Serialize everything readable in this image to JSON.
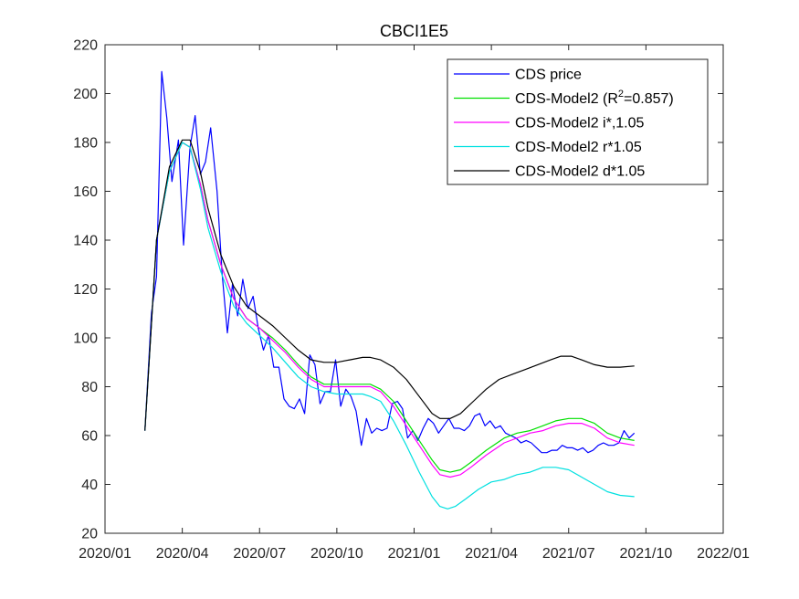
{
  "chart_data": {
    "type": "line",
    "title": "CBCI1E5",
    "xlabel": "",
    "ylabel": "",
    "ylim": [
      20,
      220
    ],
    "yticks": [
      20,
      40,
      60,
      80,
      100,
      120,
      140,
      160,
      180,
      200,
      220
    ],
    "xlim_months": [
      0,
      24
    ],
    "xticks": [
      {
        "label": "2020/01",
        "m": 0
      },
      {
        "label": "2020/04",
        "m": 3
      },
      {
        "label": "2020/07",
        "m": 6
      },
      {
        "label": "2020/10",
        "m": 9
      },
      {
        "label": "2021/01",
        "m": 12
      },
      {
        "label": "2021/04",
        "m": 15
      },
      {
        "label": "2021/07",
        "m": 18
      },
      {
        "label": "2021/10",
        "m": 21
      },
      {
        "label": "2022/01",
        "m": 24
      }
    ],
    "legend_location": "top-right",
    "grid": false,
    "series": [
      {
        "name": "CDS price",
        "color": "#0000ff",
        "points": [
          [
            1.55,
            62
          ],
          [
            1.8,
            110
          ],
          [
            2.0,
            125
          ],
          [
            2.2,
            209
          ],
          [
            2.4,
            190
          ],
          [
            2.6,
            164
          ],
          [
            2.85,
            181
          ],
          [
            3.05,
            138
          ],
          [
            3.3,
            178
          ],
          [
            3.5,
            191
          ],
          [
            3.7,
            167
          ],
          [
            3.9,
            172
          ],
          [
            4.1,
            186
          ],
          [
            4.35,
            160
          ],
          [
            4.55,
            126
          ],
          [
            4.75,
            102
          ],
          [
            4.95,
            122
          ],
          [
            5.15,
            109
          ],
          [
            5.35,
            124
          ],
          [
            5.55,
            112
          ],
          [
            5.75,
            117
          ],
          [
            5.95,
            104
          ],
          [
            6.15,
            95
          ],
          [
            6.35,
            101
          ],
          [
            6.55,
            88
          ],
          [
            6.75,
            88
          ],
          [
            6.95,
            75
          ],
          [
            7.15,
            72
          ],
          [
            7.35,
            71
          ],
          [
            7.55,
            75
          ],
          [
            7.75,
            69
          ],
          [
            7.95,
            93
          ],
          [
            8.15,
            89
          ],
          [
            8.35,
            73
          ],
          [
            8.55,
            78
          ],
          [
            8.75,
            78
          ],
          [
            8.95,
            91
          ],
          [
            9.15,
            72
          ],
          [
            9.35,
            79
          ],
          [
            9.55,
            76
          ],
          [
            9.75,
            70
          ],
          [
            9.95,
            56
          ],
          [
            10.15,
            67
          ],
          [
            10.35,
            61
          ],
          [
            10.55,
            63
          ],
          [
            10.75,
            62
          ],
          [
            10.95,
            63
          ],
          [
            11.15,
            73
          ],
          [
            11.35,
            74
          ],
          [
            11.55,
            71
          ],
          [
            11.75,
            59
          ],
          [
            11.95,
            62
          ],
          [
            12.15,
            58
          ],
          [
            12.35,
            63
          ],
          [
            12.55,
            67
          ],
          [
            12.75,
            65
          ],
          [
            12.95,
            61
          ],
          [
            13.15,
            64
          ],
          [
            13.35,
            67
          ],
          [
            13.55,
            63
          ],
          [
            13.75,
            63
          ],
          [
            13.95,
            62
          ],
          [
            14.15,
            64
          ],
          [
            14.35,
            68
          ],
          [
            14.55,
            69
          ],
          [
            14.75,
            64
          ],
          [
            14.95,
            66
          ],
          [
            15.15,
            63
          ],
          [
            15.35,
            64
          ],
          [
            15.55,
            61
          ],
          [
            15.75,
            60
          ],
          [
            15.95,
            59
          ],
          [
            16.15,
            57
          ],
          [
            16.35,
            58
          ],
          [
            16.55,
            57
          ],
          [
            16.75,
            55
          ],
          [
            16.95,
            53
          ],
          [
            17.15,
            53
          ],
          [
            17.35,
            54
          ],
          [
            17.55,
            54
          ],
          [
            17.75,
            56
          ],
          [
            17.95,
            55
          ],
          [
            18.15,
            55
          ],
          [
            18.35,
            54
          ],
          [
            18.55,
            55
          ],
          [
            18.75,
            53
          ],
          [
            18.95,
            54
          ],
          [
            19.15,
            56
          ],
          [
            19.35,
            57
          ],
          [
            19.55,
            56
          ],
          [
            19.75,
            56
          ],
          [
            19.95,
            57
          ],
          [
            20.15,
            62
          ],
          [
            20.35,
            59
          ],
          [
            20.55,
            61
          ]
        ]
      },
      {
        "name": "CDS-Model2 (R²=0.857)",
        "color": "#00e000",
        "points": [
          [
            1.55,
            62
          ],
          [
            2.0,
            140
          ],
          [
            2.5,
            168
          ],
          [
            3.0,
            180
          ],
          [
            3.3,
            178
          ],
          [
            3.7,
            163
          ],
          [
            4.0,
            148
          ],
          [
            4.5,
            130
          ],
          [
            5.0,
            116
          ],
          [
            5.5,
            108
          ],
          [
            6.0,
            104
          ],
          [
            6.5,
            100
          ],
          [
            7.0,
            95
          ],
          [
            7.5,
            89
          ],
          [
            8.0,
            84
          ],
          [
            8.5,
            81
          ],
          [
            9.0,
            81
          ],
          [
            9.5,
            81
          ],
          [
            10.0,
            81
          ],
          [
            10.3,
            81
          ],
          [
            10.7,
            79
          ],
          [
            11.2,
            74
          ],
          [
            11.7,
            66
          ],
          [
            12.2,
            58
          ],
          [
            12.7,
            50
          ],
          [
            13.0,
            46
          ],
          [
            13.4,
            45
          ],
          [
            13.8,
            46
          ],
          [
            14.2,
            49
          ],
          [
            14.8,
            54
          ],
          [
            15.5,
            59
          ],
          [
            16.0,
            61
          ],
          [
            16.5,
            62
          ],
          [
            17.0,
            64
          ],
          [
            17.5,
            66
          ],
          [
            18.0,
            67
          ],
          [
            18.5,
            67
          ],
          [
            19.0,
            65
          ],
          [
            19.5,
            61
          ],
          [
            20.0,
            59
          ],
          [
            20.55,
            58
          ]
        ]
      },
      {
        "name": "CDS-Model2 i*,1.05",
        "color": "#ff00ff",
        "points": [
          [
            1.55,
            62
          ],
          [
            2.0,
            140
          ],
          [
            2.5,
            168
          ],
          [
            3.0,
            180
          ],
          [
            3.3,
            178
          ],
          [
            3.7,
            163
          ],
          [
            4.0,
            148
          ],
          [
            4.5,
            130
          ],
          [
            5.0,
            116
          ],
          [
            5.5,
            108
          ],
          [
            6.0,
            104
          ],
          [
            6.5,
            99
          ],
          [
            7.0,
            94
          ],
          [
            7.5,
            88
          ],
          [
            8.0,
            83
          ],
          [
            8.5,
            80
          ],
          [
            9.0,
            80
          ],
          [
            9.5,
            80
          ],
          [
            10.0,
            80
          ],
          [
            10.3,
            80
          ],
          [
            10.7,
            78
          ],
          [
            11.2,
            72
          ],
          [
            11.7,
            64
          ],
          [
            12.2,
            56
          ],
          [
            12.7,
            48
          ],
          [
            13.0,
            44
          ],
          [
            13.4,
            43
          ],
          [
            13.8,
            44
          ],
          [
            14.2,
            47
          ],
          [
            14.8,
            52
          ],
          [
            15.5,
            57
          ],
          [
            16.0,
            59
          ],
          [
            16.5,
            61
          ],
          [
            17.0,
            62
          ],
          [
            17.5,
            64
          ],
          [
            18.0,
            65
          ],
          [
            18.5,
            65
          ],
          [
            19.0,
            63
          ],
          [
            19.5,
            59
          ],
          [
            20.0,
            57
          ],
          [
            20.55,
            56
          ]
        ]
      },
      {
        "name": "CDS-Model2 r*1.05",
        "color": "#00e0e0",
        "points": [
          [
            1.55,
            62
          ],
          [
            2.0,
            140
          ],
          [
            2.5,
            168
          ],
          [
            3.0,
            180
          ],
          [
            3.3,
            178
          ],
          [
            3.7,
            161
          ],
          [
            4.0,
            145
          ],
          [
            4.5,
            127
          ],
          [
            5.0,
            113
          ],
          [
            5.5,
            106
          ],
          [
            6.0,
            101
          ],
          [
            6.5,
            96
          ],
          [
            7.0,
            90
          ],
          [
            7.5,
            84
          ],
          [
            8.0,
            80
          ],
          [
            8.5,
            78
          ],
          [
            9.0,
            77
          ],
          [
            9.5,
            77
          ],
          [
            10.0,
            77
          ],
          [
            10.3,
            76
          ],
          [
            10.7,
            74
          ],
          [
            11.2,
            66
          ],
          [
            11.7,
            56
          ],
          [
            12.2,
            45
          ],
          [
            12.7,
            35
          ],
          [
            13.0,
            31
          ],
          [
            13.3,
            30
          ],
          [
            13.6,
            31
          ],
          [
            14.0,
            34
          ],
          [
            14.5,
            38
          ],
          [
            15.0,
            41
          ],
          [
            15.5,
            42
          ],
          [
            16.0,
            44
          ],
          [
            16.5,
            45
          ],
          [
            17.0,
            47
          ],
          [
            17.5,
            47
          ],
          [
            18.0,
            46
          ],
          [
            18.5,
            43
          ],
          [
            19.0,
            40
          ],
          [
            19.5,
            37
          ],
          [
            20.0,
            35.5
          ],
          [
            20.55,
            35
          ]
        ]
      },
      {
        "name": "CDS-Model2 d*1.05",
        "color": "#000000",
        "points": [
          [
            1.55,
            62
          ],
          [
            2.0,
            140
          ],
          [
            2.5,
            170
          ],
          [
            3.0,
            181
          ],
          [
            3.3,
            181
          ],
          [
            3.7,
            168
          ],
          [
            4.0,
            153
          ],
          [
            4.5,
            134
          ],
          [
            5.0,
            121
          ],
          [
            5.5,
            113
          ],
          [
            6.0,
            109
          ],
          [
            6.5,
            105
          ],
          [
            7.0,
            100
          ],
          [
            7.5,
            95
          ],
          [
            8.0,
            91
          ],
          [
            8.5,
            90
          ],
          [
            9.0,
            90
          ],
          [
            9.5,
            91
          ],
          [
            10.0,
            92
          ],
          [
            10.3,
            92
          ],
          [
            10.7,
            91
          ],
          [
            11.2,
            88
          ],
          [
            11.7,
            83
          ],
          [
            12.2,
            76
          ],
          [
            12.7,
            69
          ],
          [
            13.0,
            67
          ],
          [
            13.4,
            67
          ],
          [
            13.8,
            69
          ],
          [
            14.3,
            74
          ],
          [
            14.8,
            79
          ],
          [
            15.3,
            83
          ],
          [
            15.8,
            85
          ],
          [
            16.3,
            87
          ],
          [
            16.8,
            89
          ],
          [
            17.3,
            91
          ],
          [
            17.7,
            92.5
          ],
          [
            18.1,
            92.5
          ],
          [
            18.5,
            91
          ],
          [
            19.0,
            89
          ],
          [
            19.5,
            88
          ],
          [
            20.0,
            88
          ],
          [
            20.55,
            88.5
          ]
        ]
      }
    ]
  }
}
